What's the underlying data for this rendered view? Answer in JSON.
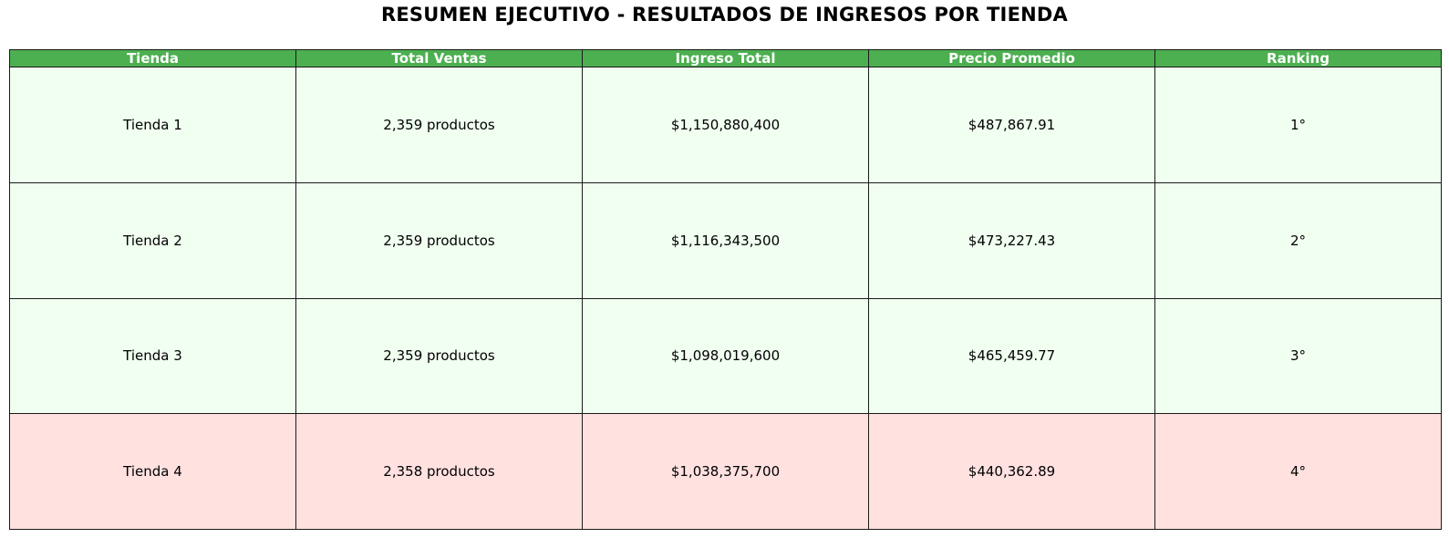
{
  "title": "RESUMEN EJECUTIVO - RESULTADOS DE INGRESOS POR TIENDA",
  "colors": {
    "header_bg": "#4caf50",
    "row_bg": "#f0fff0",
    "highlight_row_bg": "#ffe1e0",
    "border": "#1a1a1a"
  },
  "chart_data": {
    "type": "table",
    "title": "RESUMEN EJECUTIVO - RESULTADOS DE INGRESOS POR TIENDA",
    "columns": [
      "Tienda",
      "Total Ventas",
      "Ingreso Total",
      "Precio Promedio",
      "Ranking"
    ],
    "rows": [
      [
        "Tienda 1",
        "2,359 productos",
        "$1,150,880,400",
        "$487,867.91",
        "1°"
      ],
      [
        "Tienda 2",
        "2,359 productos",
        "$1,116,343,500",
        "$473,227.43",
        "2°"
      ],
      [
        "Tienda 3",
        "2,359 productos",
        "$1,098,019,600",
        "$465,459.77",
        "3°"
      ],
      [
        "Tienda 4",
        "2,358 productos",
        "$1,038,375,700",
        "$440,362.89",
        "4°"
      ]
    ],
    "highlighted_row": 3
  }
}
